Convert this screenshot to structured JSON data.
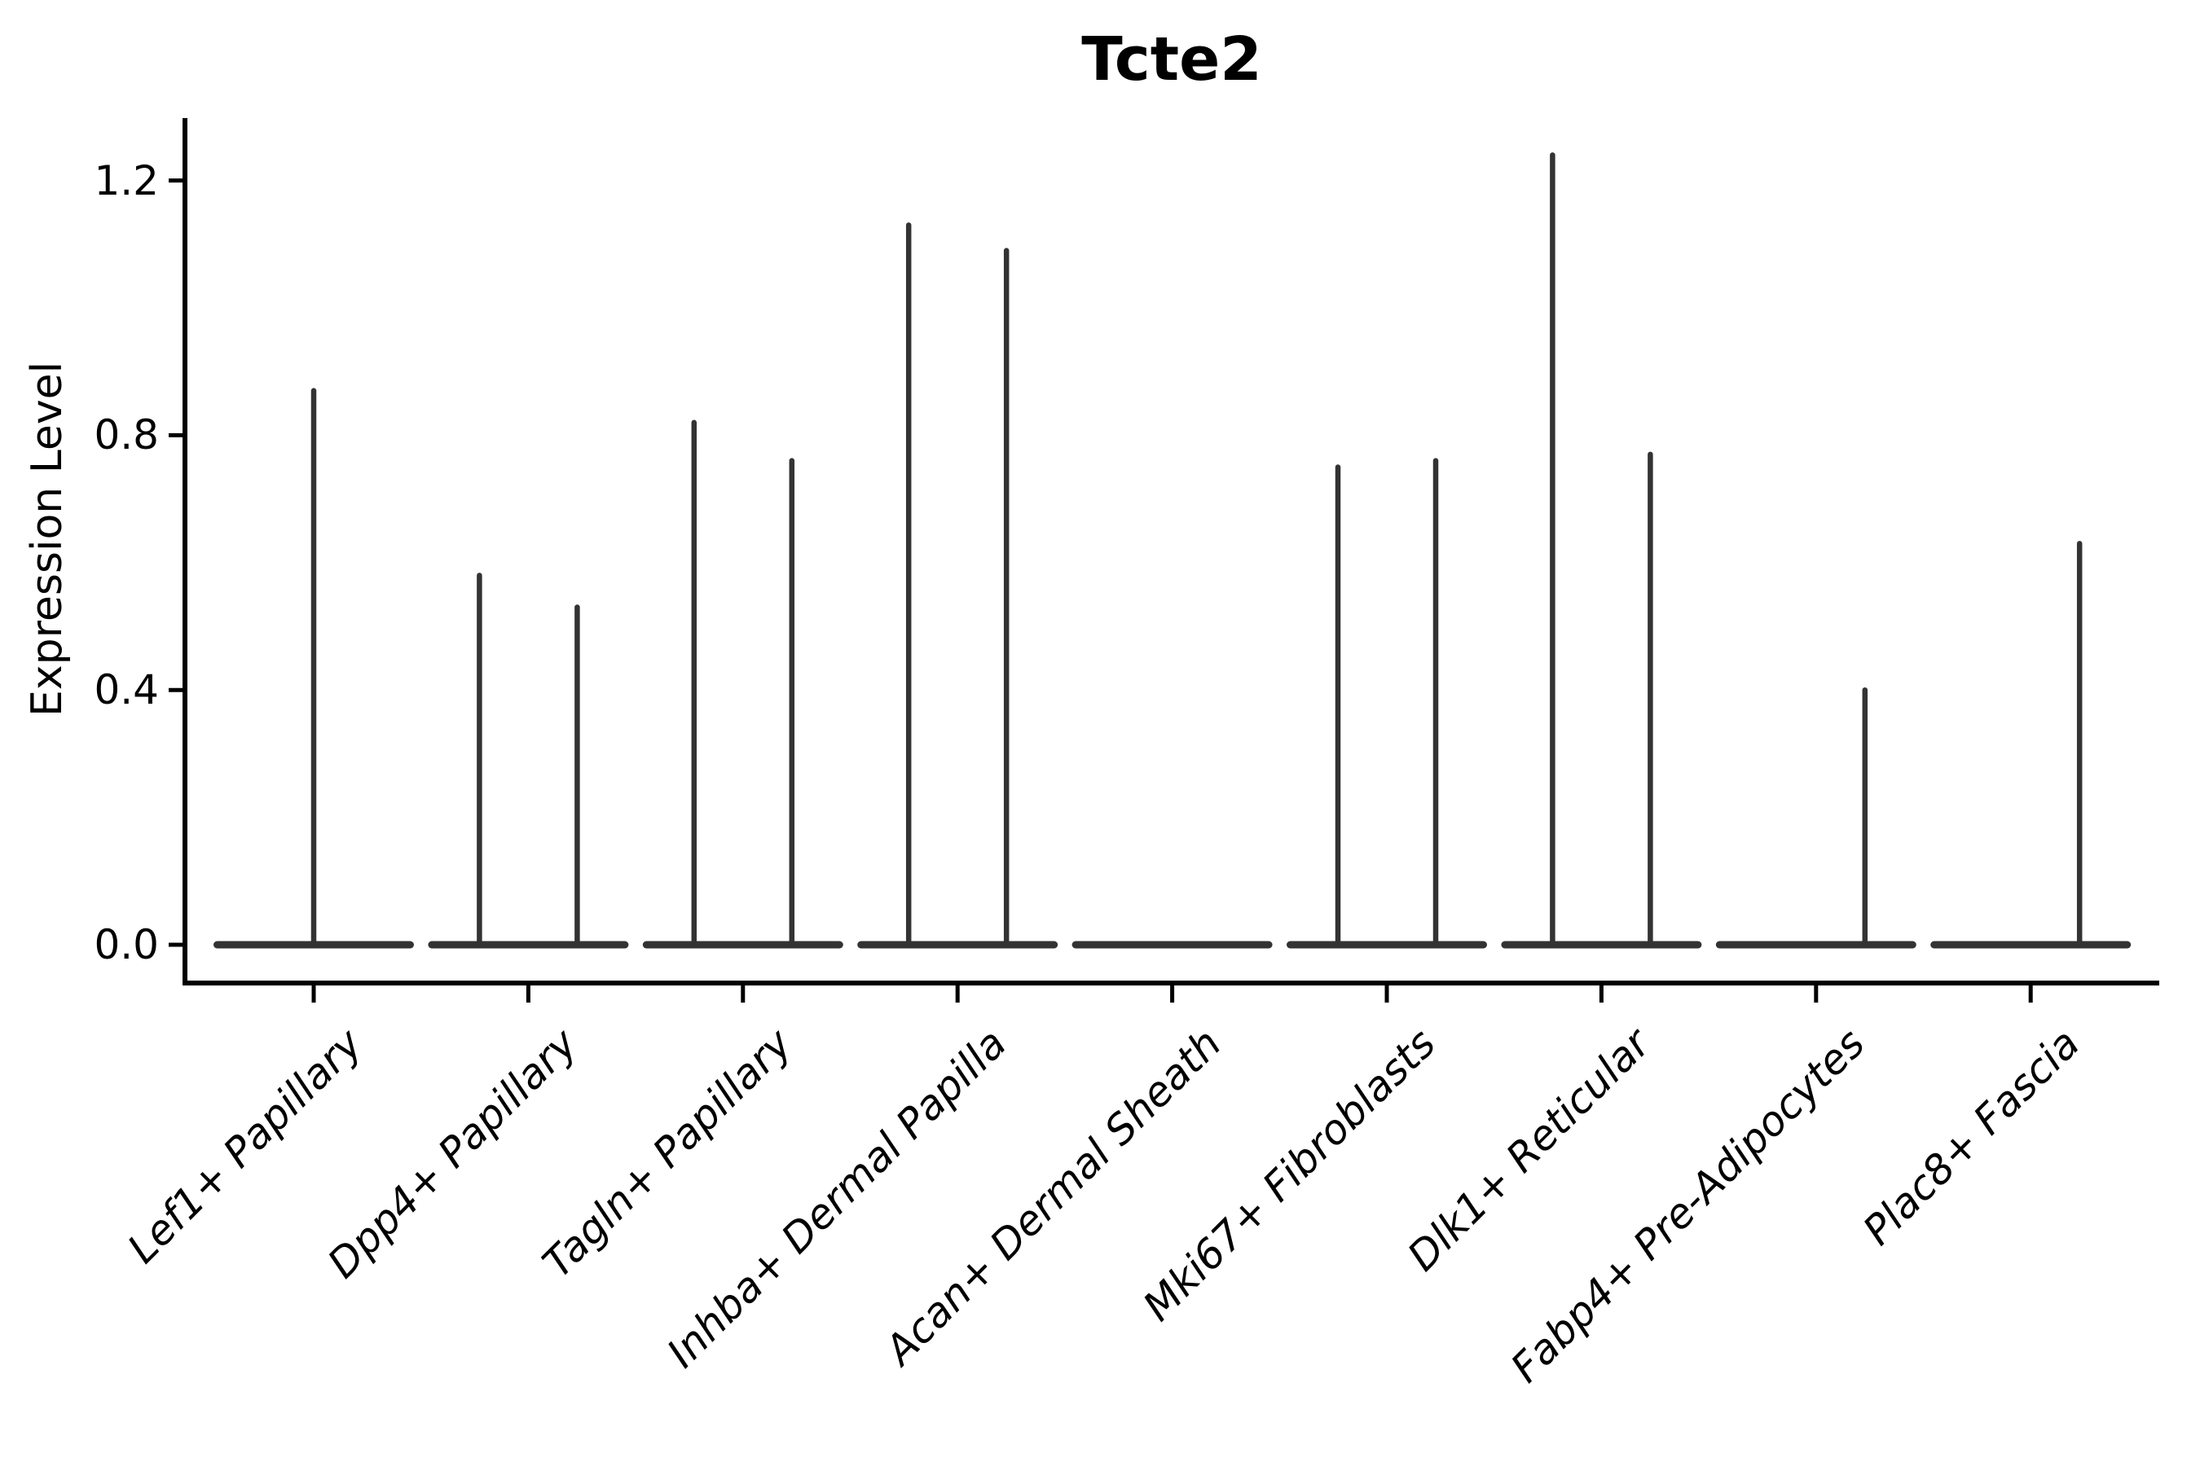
{
  "chart_data": {
    "type": "violin",
    "title": "Tcte2",
    "ylabel": "Expression Level",
    "xlabel": "",
    "ylim": [
      0,
      1.3
    ],
    "yticks": [
      {
        "label": "0.0",
        "value": 0.0
      },
      {
        "label": "0.4",
        "value": 0.4
      },
      {
        "label": "0.8",
        "value": 0.8
      },
      {
        "label": "1.2",
        "value": 1.2
      }
    ],
    "grid": false,
    "legend": "none",
    "categories": [
      "Lef1+ Papillary",
      "Dpp4+ Papillary",
      "Tagln+ Papillary",
      "Inhba+ Dermal Papilla",
      "Acan+ Dermal Sheath",
      "Mki67+ Fibroblasts",
      "Dlk1+ Reticular",
      "Fabp4+ Pre-Adipocytes",
      "Plac8+ Fascia"
    ],
    "violins": [
      {
        "category": "Lef1+ Papillary",
        "baseline_value": 0.0,
        "spikes": [
          {
            "position": "center",
            "max_value": 0.87
          }
        ]
      },
      {
        "category": "Dpp4+ Papillary",
        "baseline_value": 0.0,
        "spikes": [
          {
            "position": "left",
            "max_value": 0.58
          },
          {
            "position": "right",
            "max_value": 0.53
          }
        ]
      },
      {
        "category": "Tagln+ Papillary",
        "baseline_value": 0.0,
        "spikes": [
          {
            "position": "left",
            "max_value": 0.82
          },
          {
            "position": "right",
            "max_value": 0.76
          }
        ]
      },
      {
        "category": "Inhba+ Dermal Papilla",
        "baseline_value": 0.0,
        "spikes": [
          {
            "position": "left",
            "max_value": 1.13
          },
          {
            "position": "right",
            "max_value": 1.09
          }
        ]
      },
      {
        "category": "Acan+ Dermal Sheath",
        "baseline_value": 0.0,
        "spikes": []
      },
      {
        "category": "Mki67+ Fibroblasts",
        "baseline_value": 0.0,
        "spikes": [
          {
            "position": "left",
            "max_value": 0.75
          },
          {
            "position": "right",
            "max_value": 0.76
          }
        ]
      },
      {
        "category": "Dlk1+ Reticular",
        "baseline_value": 0.0,
        "spikes": [
          {
            "position": "left",
            "max_value": 1.24
          },
          {
            "position": "right",
            "max_value": 0.77
          }
        ]
      },
      {
        "category": "Fabp4+ Pre-Adipocytes",
        "baseline_value": 0.0,
        "spikes": [
          {
            "position": "right",
            "max_value": 0.4
          }
        ]
      },
      {
        "category": "Plac8+ Fascia",
        "baseline_value": 0.0,
        "spikes": [
          {
            "position": "right",
            "max_value": 0.63
          }
        ]
      }
    ],
    "colors": {
      "violin_line": "#333333",
      "axis": "#000000",
      "text": "#000000",
      "background": "#ffffff"
    }
  }
}
